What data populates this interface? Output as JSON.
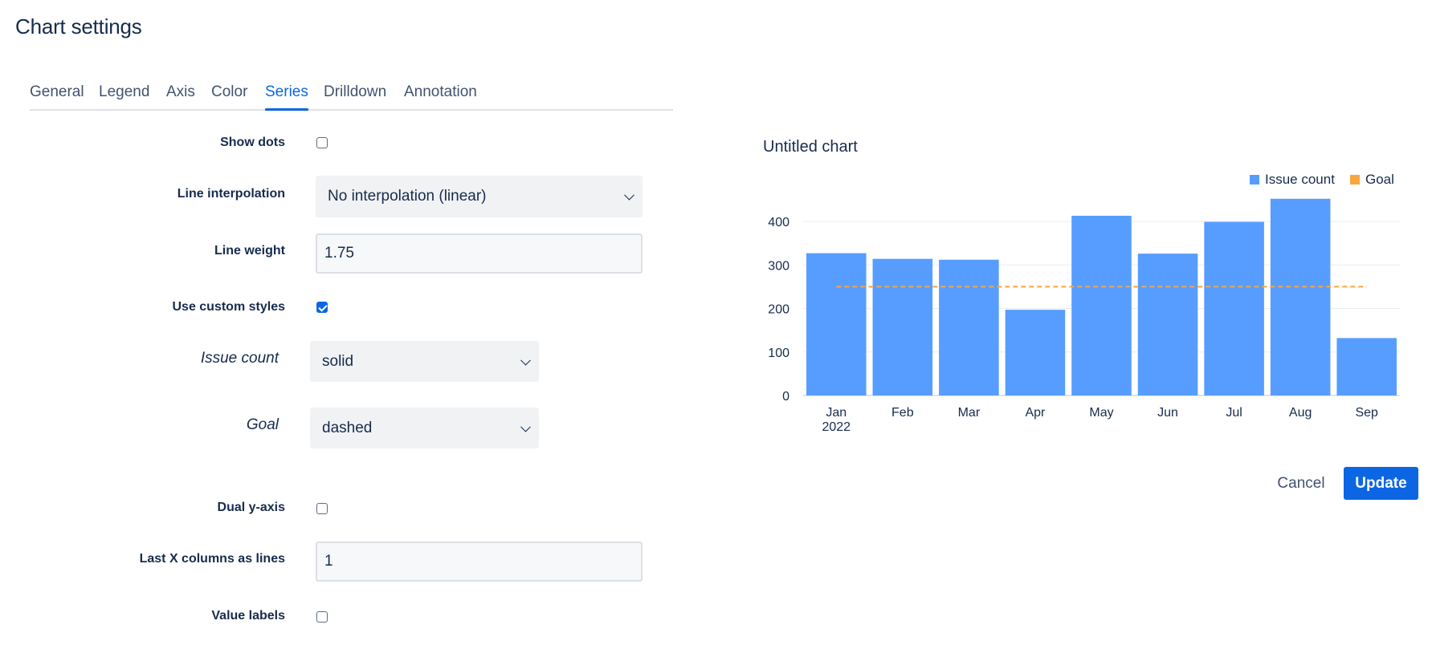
{
  "page": {
    "title": "Chart settings"
  },
  "tabs": [
    {
      "label": "General"
    },
    {
      "label": "Legend"
    },
    {
      "label": "Axis"
    },
    {
      "label": "Color"
    },
    {
      "label": "Series",
      "active": true
    },
    {
      "label": "Drilldown"
    },
    {
      "label": "Annotation"
    }
  ],
  "form": {
    "show_dots": {
      "label": "Show dots",
      "checked": false
    },
    "line_interpolation": {
      "label": "Line interpolation",
      "value": "No interpolation (linear)"
    },
    "line_weight": {
      "label": "Line weight",
      "value": "1.75"
    },
    "use_custom_styles": {
      "label": "Use custom styles",
      "checked": true
    },
    "issue_count_style": {
      "label": "Issue count",
      "value": "solid"
    },
    "goal_style": {
      "label": "Goal",
      "value": "dashed"
    },
    "dual_y_axis": {
      "label": "Dual y-axis",
      "checked": false
    },
    "last_x_columns": {
      "label": "Last X columns as lines",
      "value": "1"
    },
    "value_labels": {
      "label": "Value labels",
      "checked": false
    }
  },
  "preview": {
    "title": "Untitled chart",
    "legend": [
      {
        "label": "Issue count",
        "color": "#579dff"
      },
      {
        "label": "Goal",
        "color": "#faa53d"
      }
    ]
  },
  "chart_data": {
    "type": "bar",
    "categories": [
      "Jan",
      "Feb",
      "Mar",
      "Apr",
      "May",
      "Jun",
      "Jul",
      "Aug",
      "Sep"
    ],
    "category_sublabel_first": "2022",
    "series": [
      {
        "name": "Issue count",
        "type": "bar",
        "style": "solid",
        "color": "#579dff",
        "values": [
          327,
          314,
          312,
          197,
          413,
          326,
          399,
          452,
          132
        ]
      },
      {
        "name": "Goal",
        "type": "line",
        "style": "dashed",
        "color": "#faa53d",
        "values": [
          250,
          250,
          250,
          250,
          250,
          250,
          250,
          250,
          250
        ]
      }
    ],
    "y_ticks": [
      0,
      100,
      200,
      300,
      400
    ],
    "ylim": [
      0,
      460
    ],
    "grid": true,
    "legend_position": "top-right"
  },
  "actions": {
    "cancel": "Cancel",
    "update": "Update"
  }
}
